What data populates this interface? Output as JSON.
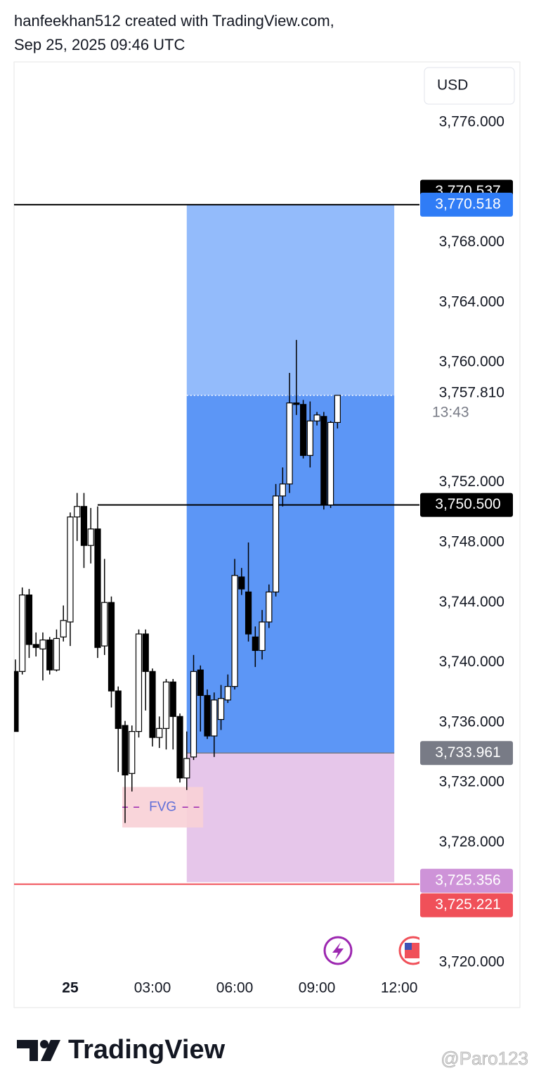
{
  "header": {
    "line1": "hanfeekhan512 created with TradingView.com,",
    "line2": "Sep 25, 2025 09:46 UTC"
  },
  "currency": "USD",
  "chart_data": {
    "type": "candlestick",
    "x": [
      -2,
      -1.75,
      -1.5,
      -1.25,
      -1,
      -0.75,
      -0.5,
      -0.25,
      0,
      0.25,
      0.5,
      0.75,
      1,
      1.25,
      1.5,
      1.75,
      2,
      2.25,
      2.5,
      2.75,
      3,
      3.25,
      3.5,
      3.75,
      4,
      4.25,
      4.5,
      4.75,
      5,
      5.25,
      5.5,
      5.75,
      6,
      6.25,
      6.5,
      6.75,
      7,
      7.25,
      7.5,
      7.75,
      8,
      8.25,
      8.5,
      8.75,
      9,
      9.25,
      9.5,
      9.75
    ],
    "open": [
      3739.4,
      3739.4,
      3744.5,
      3741.2,
      3740.9,
      3741.5,
      3739.5,
      3741.7,
      3742.7,
      3749.7,
      3750.4,
      3747.8,
      3748.9,
      3741.1,
      3744.0,
      3738.1,
      3735.8,
      3732.6,
      3735.4,
      3741.9,
      3739.4,
      3735.0,
      3735.6,
      3738.7,
      3736.4,
      3732.3,
      3733.7,
      3739.5,
      3737.8,
      3735.1,
      3736.2,
      3737.5,
      3738.4,
      3745.7,
      3744.7,
      3741.7,
      3740.8,
      3742.7,
      3744.7,
      3751.1,
      3751.9,
      3757.3,
      3757.2,
      3753.8,
      3756.1,
      3756.4,
      3750.5,
      3756.0
    ],
    "high": [
      3740.2,
      3745.0,
      3744.9,
      3742.0,
      3742.0,
      3741.7,
      3742.2,
      3743.8,
      3750.0,
      3751.3,
      3751.3,
      3750.3,
      3750.4,
      3746.9,
      3744.4,
      3738.4,
      3736.1,
      3735.8,
      3742.2,
      3742.2,
      3739.6,
      3736.4,
      3738.9,
      3738.9,
      3736.6,
      3735.4,
      3740.5,
      3739.8,
      3738.2,
      3738.0,
      3738.5,
      3739.2,
      3746.9,
      3746.3,
      3748.0,
      3742.4,
      3743.5,
      3745.2,
      3751.9,
      3753.0,
      3759.3,
      3761.5,
      3757.5,
      3757.4,
      3756.7,
      3756.7,
      3756.1,
      3757.8
    ],
    "low": [
      3735.4,
      3739.2,
      3740.3,
      3740.4,
      3738.8,
      3739.2,
      3739.4,
      3741.4,
      3741.1,
      3748.1,
      3746.3,
      3746.6,
      3740.3,
      3740.5,
      3737.0,
      3732.7,
      3729.3,
      3731.4,
      3735.0,
      3736.8,
      3734.4,
      3734.3,
      3734.2,
      3734.2,
      3732.0,
      3731.5,
      3733.5,
      3735.4,
      3734.9,
      3733.7,
      3735.5,
      3737.3,
      3738.2,
      3744.5,
      3741.4,
      3739.7,
      3740.2,
      3742.3,
      3744.4,
      3750.4,
      3751.3,
      3756.5,
      3753.6,
      3753.0,
      3755.8,
      3750.2,
      3750.3,
      3755.6
    ],
    "close": [
      3735.4,
      3744.5,
      3741.2,
      3741.0,
      3741.5,
      3739.5,
      3741.6,
      3742.8,
      3749.7,
      3750.4,
      3747.8,
      3748.9,
      3741.0,
      3744.0,
      3738.1,
      3735.6,
      3732.5,
      3735.4,
      3741.9,
      3739.4,
      3735.0,
      3735.6,
      3738.7,
      3736.4,
      3732.3,
      3733.6,
      3739.4,
      3737.8,
      3735.1,
      3737.5,
      3737.6,
      3738.4,
      3745.8,
      3744.9,
      3741.9,
      3740.8,
      3742.7,
      3744.7,
      3751.1,
      3751.9,
      3757.3,
      3757.2,
      3753.8,
      3756.1,
      3756.5,
      3750.5,
      3756.0,
      3757.81
    ],
    "up_color": "#ffffff",
    "down_color": "#000000",
    "wick_color": "#000000",
    "xlim": [
      -2.05,
      12.74
    ],
    "xticks": [
      {
        "value": 0,
        "label": "25"
      },
      {
        "value": 3,
        "label": "03:00"
      },
      {
        "value": 6,
        "label": "06:00"
      },
      {
        "value": 9,
        "label": "09:00"
      },
      {
        "value": 12,
        "label": "12:00"
      }
    ],
    "ylim": [
      3719.2,
      3779.94
    ],
    "yticks": [
      {
        "value": 3776,
        "label": "3,776.000"
      },
      {
        "value": 3768,
        "label": "3,768.000"
      },
      {
        "value": 3764,
        "label": "3,764.000"
      },
      {
        "value": 3760,
        "label": "3,760.000"
      },
      {
        "value": 3752,
        "label": "3,752.000"
      },
      {
        "value": 3748,
        "label": "3,748.000"
      },
      {
        "value": 3744,
        "label": "3,744.000"
      },
      {
        "value": 3740,
        "label": "3,740.000"
      },
      {
        "value": 3736,
        "label": "3,736.000"
      },
      {
        "value": 3732,
        "label": "3,732.000"
      },
      {
        "value": 3728,
        "label": "3,728.000"
      },
      {
        "value": 3720,
        "label": "3,720.000"
      }
    ],
    "grid": false,
    "position": {
      "start": 4.25,
      "end": 11.82,
      "entry": 3733.961,
      "target": 3770.518,
      "stop": 3725.356,
      "target_color": "#93bbfb",
      "active_color": "#5c96f6",
      "stop_color": "#e6c6ea"
    },
    "annotation": {
      "text": "FVG",
      "x0": 1.9,
      "x1": 4.85,
      "y0": 3729.0,
      "y1": 3731.7,
      "color": "#f8d0d6"
    },
    "price_labels": [
      {
        "value": 3770.537,
        "label": "3,770.537",
        "color": "#000000"
      },
      {
        "value": 3770.518,
        "label": "3,770.518",
        "color": "#2f7cf6",
        "line": true,
        "line_color": "#000000"
      },
      {
        "value": 3750.5,
        "label": "3,750.500",
        "color": "#000000",
        "line": true,
        "line_from": 1,
        "line_color": "#000000"
      },
      {
        "value": 3733.961,
        "label": "3,733.961",
        "color": "#787b86"
      },
      {
        "value": 3725.356,
        "label": "3,725.356",
        "color": "#ce93d8"
      },
      {
        "value": 3725.221,
        "label": "3,725.221",
        "color": "#f05059",
        "line": true,
        "line_color": "#f05059"
      }
    ],
    "last_price": {
      "value": 3757.81,
      "label": "3,757.810"
    },
    "countdown": "13:43"
  },
  "footer": {
    "brand": "TradingView",
    "watermark": "@Paro123"
  }
}
